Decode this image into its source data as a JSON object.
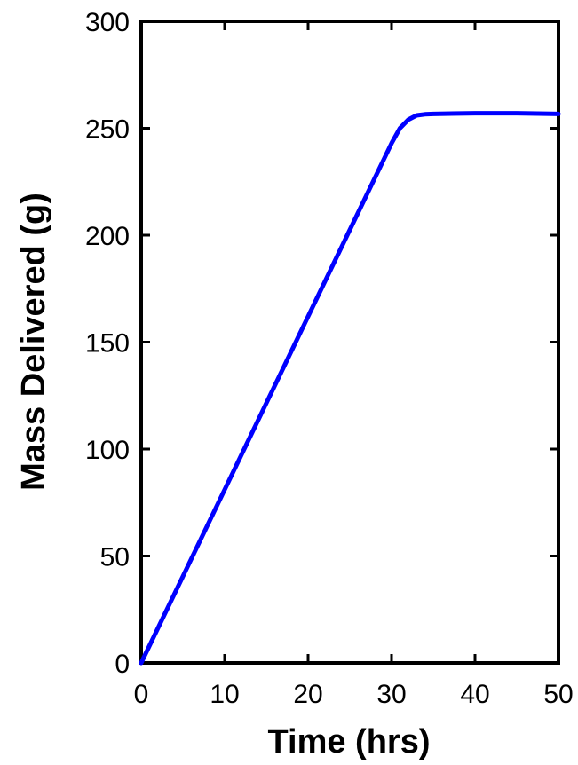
{
  "chart_data": {
    "type": "line",
    "title": "",
    "xlabel": "Time (hrs)",
    "ylabel": "Mass Delivered (g)",
    "xlim": [
      0,
      50
    ],
    "ylim": [
      0,
      300
    ],
    "xticks": [
      0,
      10,
      20,
      30,
      40,
      50
    ],
    "yticks": [
      0,
      50,
      100,
      150,
      200,
      250,
      300
    ],
    "xtick_labels": [
      "0",
      "10",
      "20",
      "30",
      "40",
      "50"
    ],
    "ytick_labels": [
      "0",
      "50",
      "100",
      "150",
      "200",
      "250",
      "300"
    ],
    "grid": false,
    "legend": "none",
    "series": [
      {
        "color": "#0000ff",
        "x": [
          0,
          5,
          10,
          15,
          20,
          25,
          30,
          31,
          32,
          33,
          34,
          35,
          40,
          45,
          50
        ],
        "y": [
          0,
          40.5,
          81,
          121.5,
          162,
          202.5,
          243,
          250,
          254,
          256,
          256.5,
          256.7,
          257,
          257,
          256.7
        ]
      }
    ]
  }
}
